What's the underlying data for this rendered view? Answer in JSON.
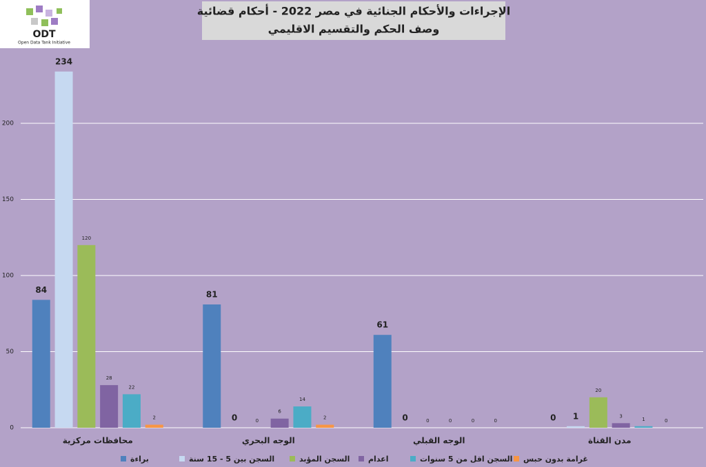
{
  "logo": {
    "name": "ODT",
    "tagline": "Open Data Tank Initiative"
  },
  "chart_data": {
    "type": "bar",
    "title": "الإجراءات والأحكام الجنائية في مصر 2022 - أحكام قضائية",
    "subtitle": "وصف الحكم والتقسيم الاقليمي",
    "categories": [
      "محافظات مركزية",
      "الوجه البحري",
      "الوجه القبلي",
      "مدن القناة"
    ],
    "series": [
      {
        "name": "براءة",
        "color": "#4f81bd",
        "values": [
          84,
          81,
          61,
          0
        ]
      },
      {
        "name": "السجن بين 5 - 15 سنة",
        "color": "#c6d9f1",
        "values": [
          234,
          0,
          0,
          1
        ]
      },
      {
        "name": "السجن المؤبد",
        "color": "#9bbb59",
        "values": [
          120,
          0,
          0,
          20
        ]
      },
      {
        "name": "اعدام",
        "color": "#8064a2",
        "values": [
          28,
          6,
          0,
          3
        ]
      },
      {
        "name": "السجن اقل من 5 سنوات",
        "color": "#4bacc6",
        "values": [
          22,
          14,
          0,
          1
        ]
      },
      {
        "name": "غرامة بدون حبس",
        "color": "#f79646",
        "values": [
          2,
          2,
          0,
          0
        ]
      }
    ],
    "ylim": [
      0,
      250
    ],
    "yticks": [
      0,
      50,
      100,
      150,
      200
    ],
    "grid": true,
    "legend": "bottom"
  }
}
